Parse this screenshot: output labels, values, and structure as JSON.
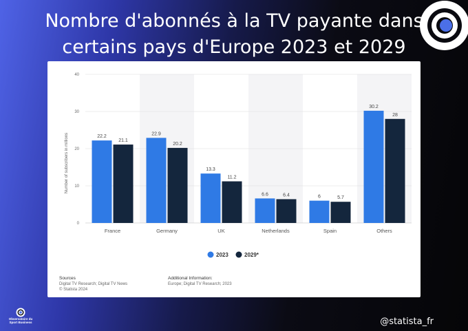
{
  "page": {
    "headline_line1": "Nombre d'abonnés à la TV payante dans",
    "headline_line2": "certains pays d'Europe 2023 et 2029",
    "handle": "@statista_fr",
    "footer_logo_text_1": "Observatoire du",
    "footer_logo_text_2": "Sport Business"
  },
  "chart_data": {
    "type": "bar",
    "ylabel": "Number of subscribers in millions",
    "ylim": [
      0,
      40
    ],
    "yticks": [
      0,
      10,
      20,
      30,
      40
    ],
    "categories": [
      "France",
      "Germany",
      "UK",
      "Netherlands",
      "Spain",
      "Others"
    ],
    "series": [
      {
        "name": "2023",
        "color": "#2f7ae5",
        "values": [
          22.2,
          22.9,
          13.3,
          6.6,
          6,
          30.2
        ],
        "labels": [
          "22.2",
          "22.9",
          "13.3",
          "6.6",
          "6",
          "30.2"
        ]
      },
      {
        "name": "2029*",
        "color": "#14263d",
        "values": [
          21.1,
          20.2,
          11.2,
          6.4,
          5.7,
          28
        ],
        "labels": [
          "21.1",
          "20.2",
          "11.2",
          "6.4",
          "5.7",
          "28"
        ]
      }
    ],
    "sources_title": "Sources",
    "sources_line1": "Digital TV Research; Digital TV News",
    "sources_line2": "© Statista 2024",
    "additional_title": "Additional Information:",
    "additional_line1": "Europe; Digital TV Research; 2023"
  }
}
